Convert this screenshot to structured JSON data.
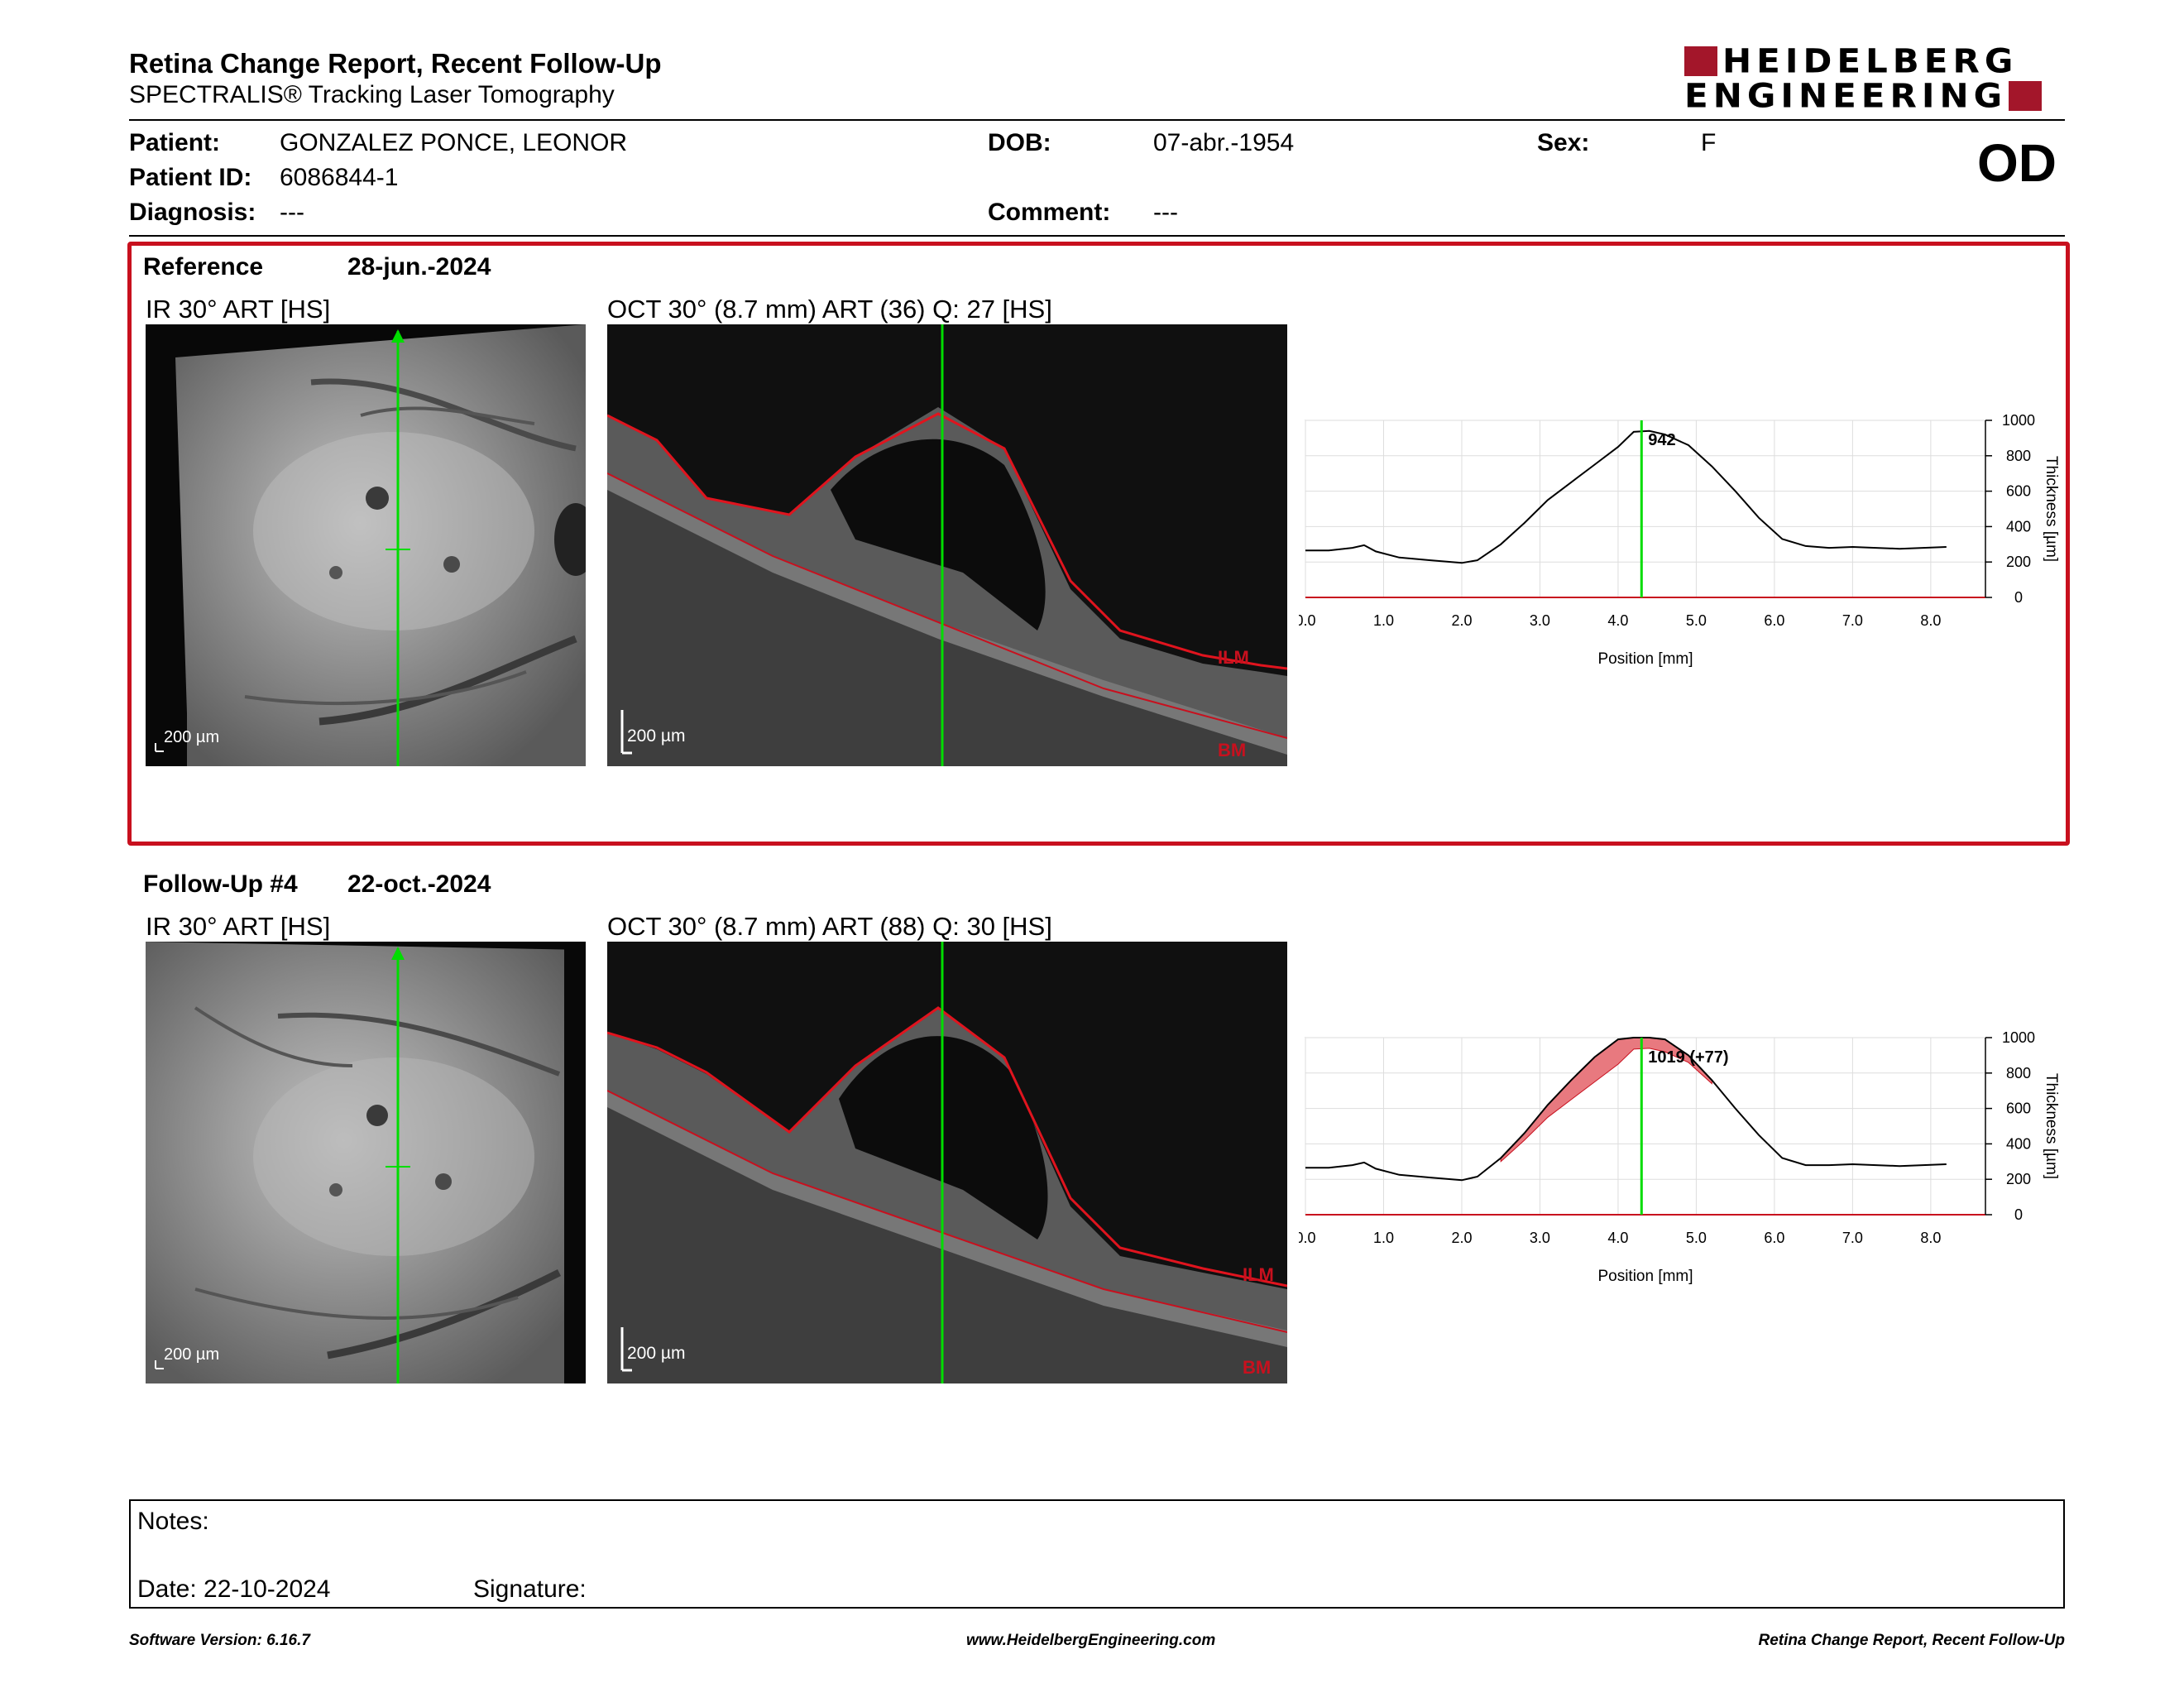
{
  "header": {
    "title": "Retina Change Report, Recent Follow-Up",
    "subtitle": "SPECTRALIS® Tracking Laser Tomography",
    "logo_line1": "HEIDELBERG",
    "logo_line2": "ENGINEERING",
    "eye": "OD"
  },
  "patient": {
    "patient_label": "Patient:",
    "patient_value": "GONZALEZ PONCE, LEONOR",
    "id_label": "Patient ID:",
    "id_value": "6086844-1",
    "diagnosis_label": "Diagnosis:",
    "diagnosis_value": "---",
    "dob_label": "DOB:",
    "dob_value": "07-abr.-1954",
    "comment_label": "Comment:",
    "comment_value": "---",
    "sex_label": "Sex:",
    "sex_value": "F"
  },
  "reference": {
    "label": "Reference",
    "date": "28-jun.-2024",
    "ir_label": "IR 30° ART [HS]",
    "oct_label": "OCT 30° (8.7 mm) ART (36) Q: 27 [HS]",
    "ir_scale": "200 µm",
    "oct_scale": "200 µm",
    "ilm": "ILM",
    "bm": "BM",
    "peak_label": "942"
  },
  "followup": {
    "label": "Follow-Up #4",
    "date": "22-oct.-2024",
    "ir_label": "IR 30° ART [HS]",
    "oct_label": "OCT 30° (8.7 mm) ART (88) Q: 30 [HS]",
    "ir_scale": "200 µm",
    "oct_scale": "200 µm",
    "ilm": "ILM",
    "bm": "BM",
    "peak_label": "1019 (+77)"
  },
  "chart_data": [
    {
      "type": "line",
      "xlabel": "Position [mm]",
      "ylabel": "Thickness [µm]",
      "xlim": [
        0,
        8.7
      ],
      "ylim": [
        0,
        1000
      ],
      "x_ticks": [
        "0.0",
        "1.0",
        "2.0",
        "3.0",
        "4.0",
        "5.0",
        "6.0",
        "7.0",
        "8.0"
      ],
      "y_ticks": [
        "0",
        "200",
        "400",
        "600",
        "800",
        "1000"
      ],
      "marker_x": 4.3,
      "annotation": "942",
      "grid": true,
      "series": [
        {
          "x": [
            0.0,
            0.3,
            0.6,
            0.75,
            0.9,
            1.2,
            1.6,
            2.0,
            2.2,
            2.5,
            2.8,
            3.1,
            3.4,
            3.7,
            4.0,
            4.2,
            4.4,
            4.6,
            4.9,
            5.2,
            5.5,
            5.8,
            6.1,
            6.4,
            6.7,
            7.0,
            7.3,
            7.6,
            7.9,
            8.2
          ],
          "y": [
            265,
            265,
            280,
            295,
            260,
            225,
            210,
            195,
            210,
            300,
            420,
            550,
            650,
            750,
            850,
            935,
            940,
            920,
            860,
            740,
            600,
            450,
            330,
            290,
            280,
            285,
            280,
            275,
            280,
            285
          ]
        }
      ]
    },
    {
      "type": "line",
      "xlabel": "Position [mm]",
      "ylabel": "Thickness [µm]",
      "xlim": [
        0,
        8.7
      ],
      "ylim": [
        0,
        1000
      ],
      "x_ticks": [
        "0.0",
        "1.0",
        "2.0",
        "3.0",
        "4.0",
        "5.0",
        "6.0",
        "7.0",
        "8.0"
      ],
      "y_ticks": [
        "0",
        "200",
        "400",
        "600",
        "800",
        "1000"
      ],
      "marker_x": 4.3,
      "annotation": "1019 (+77)",
      "grid": true,
      "series": [
        {
          "x": [
            0.0,
            0.3,
            0.6,
            0.75,
            0.9,
            1.2,
            1.6,
            2.0,
            2.2,
            2.5,
            2.8,
            3.1,
            3.4,
            3.7,
            4.0,
            4.2,
            4.4,
            4.6,
            4.9,
            5.2,
            5.5,
            5.8,
            6.1,
            6.4,
            6.7,
            7.0,
            7.3,
            7.6,
            7.9,
            8.2
          ],
          "y": [
            265,
            265,
            280,
            295,
            260,
            225,
            210,
            195,
            215,
            320,
            460,
            620,
            760,
            890,
            990,
            1019,
            1015,
            990,
            900,
            760,
            600,
            450,
            320,
            280,
            280,
            285,
            280,
            275,
            280,
            285
          ]
        }
      ]
    }
  ],
  "notes": {
    "notes_label": "Notes:",
    "date_label": "Date: 22-10-2024",
    "signature_label": "Signature:"
  },
  "footer": {
    "software": "Software Version: 6.16.7",
    "website": "www.HeidelbergEngineering.com",
    "report": "Retina Change Report, Recent Follow-Up"
  },
  "colors": {
    "accent_red": "#c8101e",
    "logo_red": "#a3162a",
    "marker_green": "#00dd00",
    "difference_fill": "#e8797f"
  }
}
